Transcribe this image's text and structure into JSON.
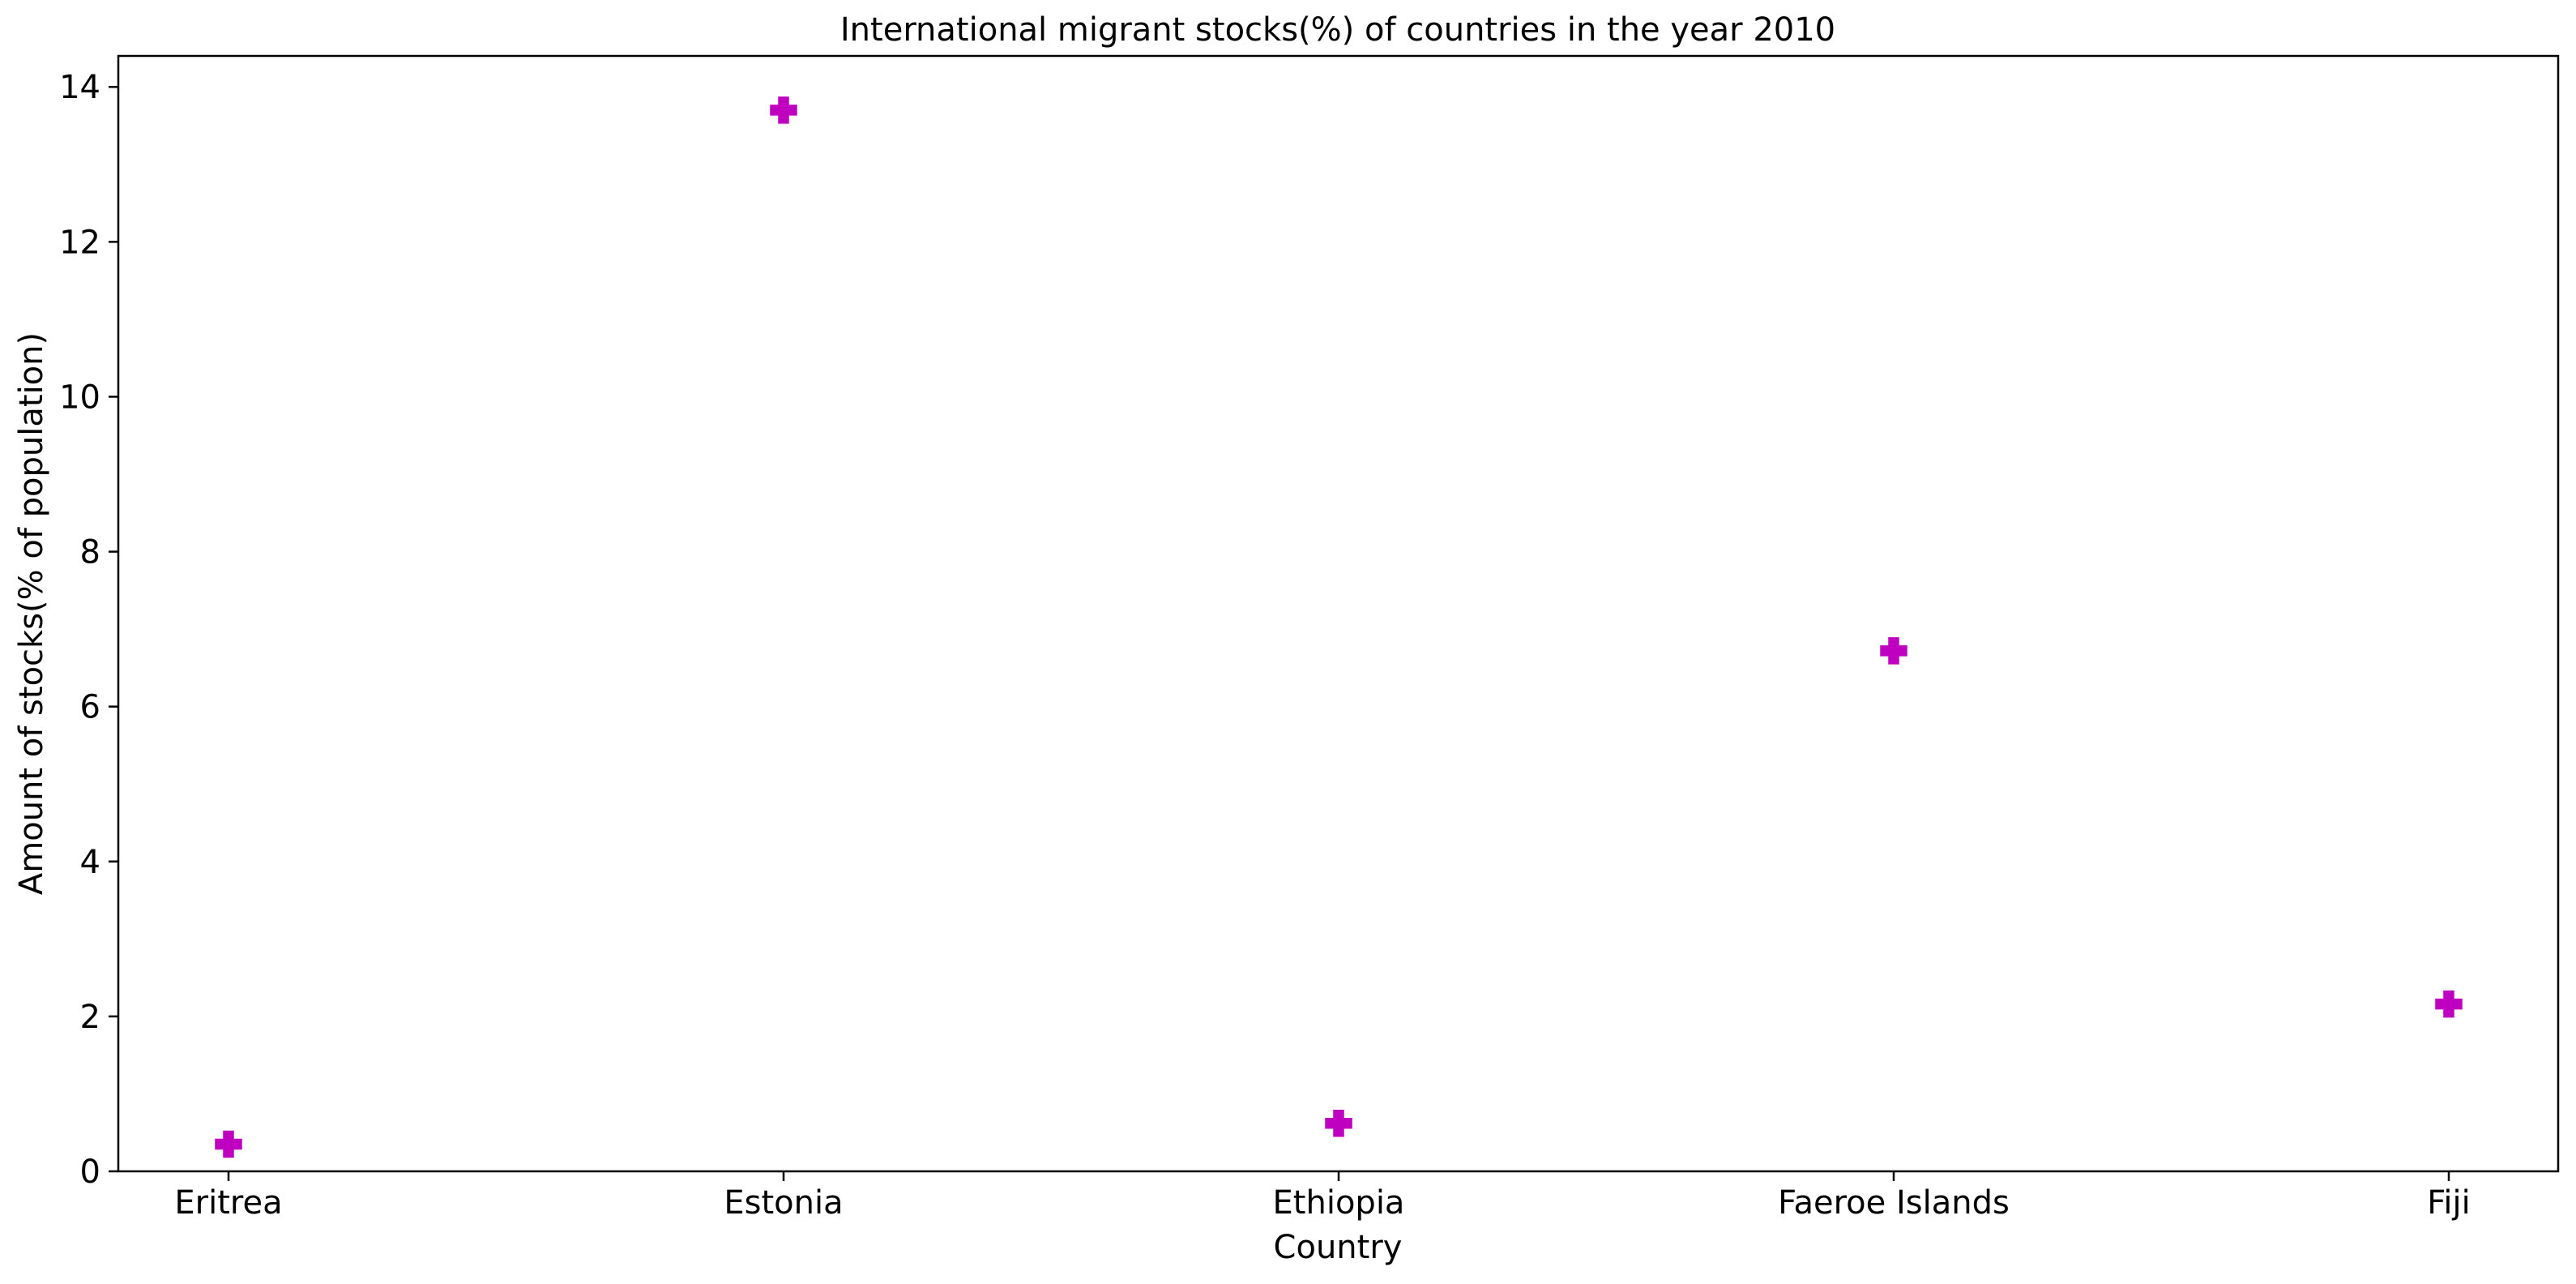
{
  "chart_data": {
    "type": "scatter",
    "title": "International migrant stocks(%) of countries in the year 2010",
    "xlabel": "Country",
    "ylabel": "Amount of stocks(% of population)",
    "categories": [
      "Eritrea",
      "Estonia",
      "Ethiopia",
      "Faeroe Islands",
      "Fiji"
    ],
    "series": [
      {
        "values": [
          0.35,
          13.7,
          0.62,
          6.72,
          2.16
        ]
      }
    ],
    "ylim": [
      0,
      14.4
    ],
    "yticks": [
      0,
      2,
      4,
      6,
      8,
      10,
      12,
      14
    ],
    "marker": "plus-filled",
    "marker_color": "#c000c0",
    "grid": false,
    "legend": "none"
  }
}
